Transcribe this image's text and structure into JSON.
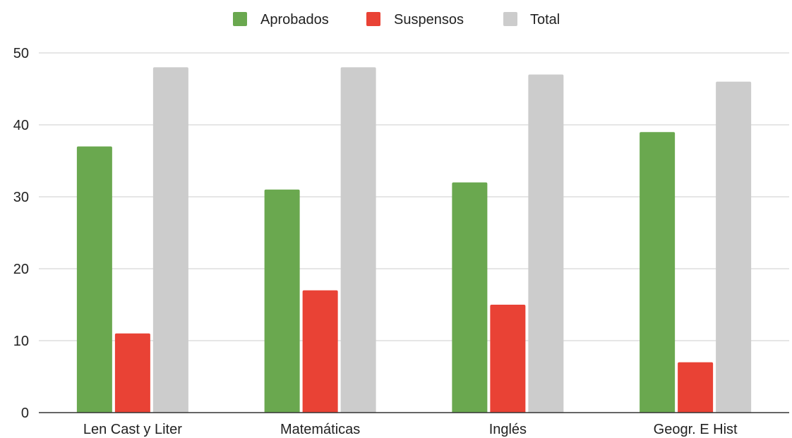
{
  "chart_data": {
    "type": "bar",
    "categories": [
      "Len Cast y Liter",
      "Matemáticas",
      "Inglés",
      "Geogr. E Hist"
    ],
    "series": [
      {
        "name": "Aprobados",
        "color": "#6aa84f",
        "values": [
          37,
          31,
          32,
          39
        ]
      },
      {
        "name": "Suspensos",
        "color": "#e94235",
        "values": [
          11,
          17,
          15,
          7
        ]
      },
      {
        "name": "Total",
        "color": "#cccccc",
        "values": [
          48,
          48,
          47,
          46
        ]
      }
    ],
    "ylim": [
      0,
      50
    ],
    "yticks": [
      0,
      10,
      20,
      30,
      40,
      50
    ],
    "grid": true,
    "legend_position": "top-center",
    "title": "",
    "xlabel": "",
    "ylabel": ""
  }
}
